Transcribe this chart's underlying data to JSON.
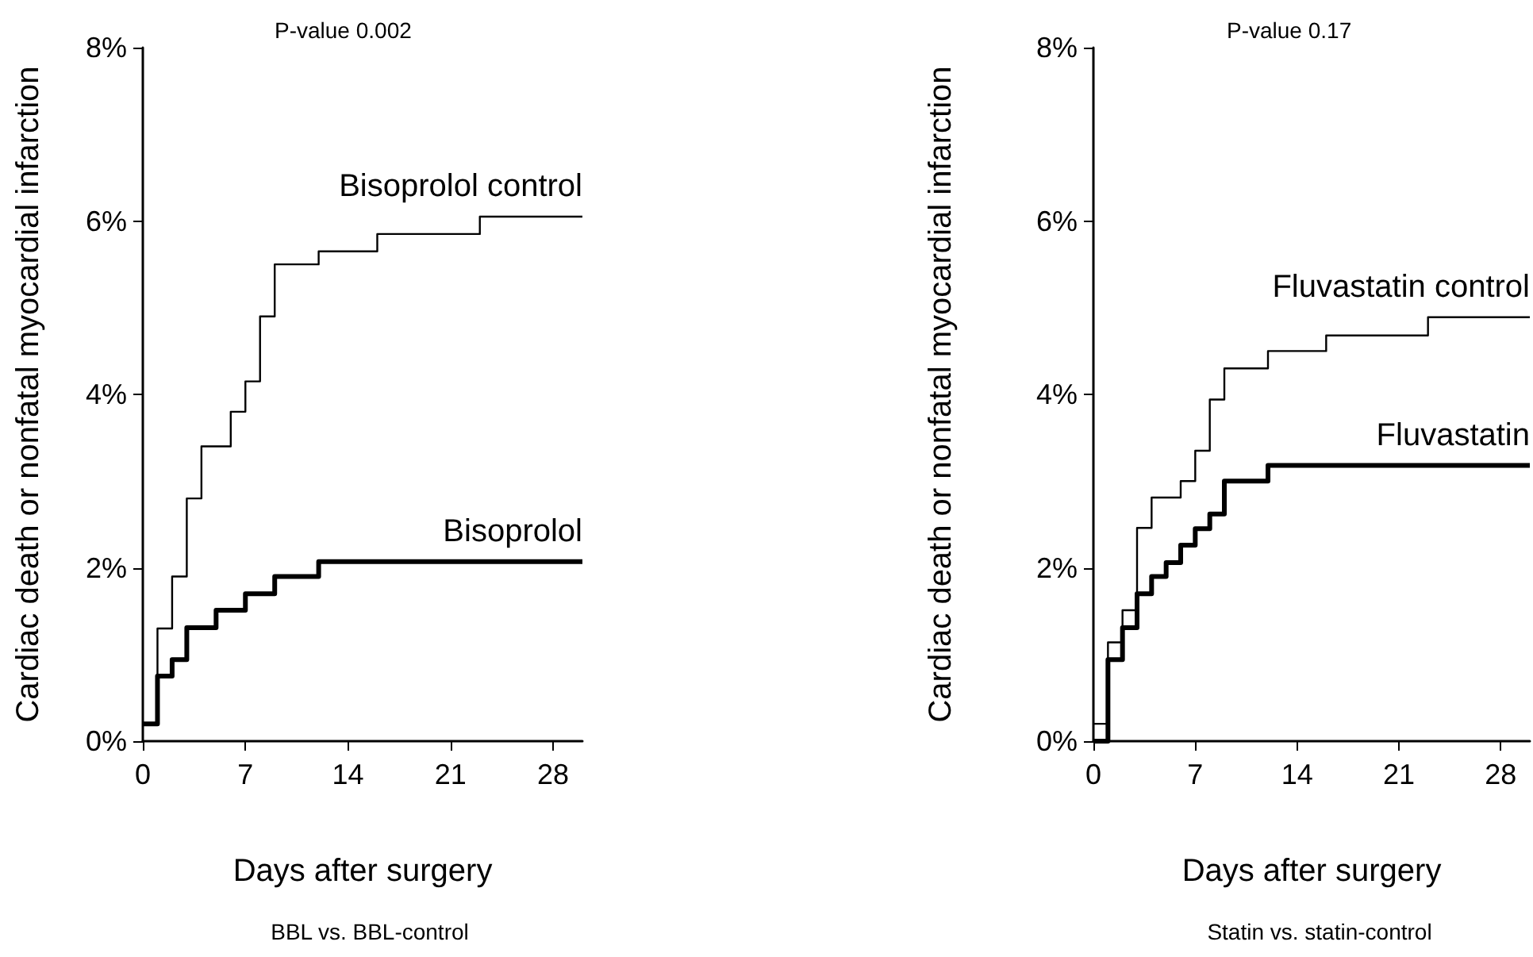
{
  "chart_data": [
    {
      "type": "step",
      "title": "BBL vs. BBL-control",
      "xlabel": "Days after surgery",
      "ylabel": "Cardiac death or nonfatal myocardial infarction",
      "annotations": [
        "P-value 0.002"
      ],
      "xlim": [
        0,
        30
      ],
      "xticks": [
        0,
        7,
        14,
        21,
        28
      ],
      "ylim": [
        0,
        8
      ],
      "yticks": [
        {
          "value": 0,
          "label": "0%"
        },
        {
          "value": 2,
          "label": "2%"
        },
        {
          "value": 4,
          "label": "4%"
        },
        {
          "value": 6,
          "label": "6%"
        },
        {
          "value": 8,
          "label": "8%"
        }
      ],
      "grid": false,
      "legend": false,
      "marker": "none",
      "series": [
        {
          "name": "Bisoprolol control",
          "color": "#000000",
          "x": [
            0,
            1,
            2,
            3,
            4,
            6,
            7,
            8,
            9,
            12,
            16,
            23,
            30
          ],
          "values": [
            0.2,
            1.3,
            1.9,
            2.8,
            3.4,
            3.8,
            4.15,
            4.9,
            5.5,
            5.65,
            5.85,
            6.05,
            6.05
          ]
        },
        {
          "name": "Bisoprolol",
          "color": "#000000",
          "x": [
            0,
            1,
            2,
            3,
            5,
            7,
            9,
            12,
            30
          ],
          "values": [
            0.2,
            0.75,
            0.94,
            1.31,
            1.51,
            1.7,
            1.9,
            2.07,
            2.07
          ]
        }
      ]
    },
    {
      "type": "step",
      "title": "Statin vs. statin-control",
      "xlabel": "Days after surgery",
      "ylabel": "Cardiac death or nonfatal myocardial infarction",
      "annotations": [
        "P-value 0.17"
      ],
      "xlim": [
        0,
        30
      ],
      "xticks": [
        0,
        7,
        14,
        21,
        28
      ],
      "ylim": [
        0,
        8
      ],
      "yticks": [
        {
          "value": 0,
          "label": "0%"
        },
        {
          "value": 2,
          "label": "2%"
        },
        {
          "value": 4,
          "label": "4%"
        },
        {
          "value": 6,
          "label": "6%"
        },
        {
          "value": 8,
          "label": "8%"
        }
      ],
      "grid": false,
      "legend": false,
      "marker": "none",
      "series": [
        {
          "name": "Fluvastatin control",
          "color": "#000000",
          "x": [
            0,
            1,
            2,
            3,
            4,
            6,
            7,
            8,
            9,
            12,
            16,
            23,
            30
          ],
          "values": [
            0.2,
            1.14,
            1.51,
            2.46,
            2.81,
            3.0,
            3.35,
            3.94,
            4.3,
            4.5,
            4.68,
            4.89,
            4.89
          ]
        },
        {
          "name": "Fluvastatin",
          "color": "#000000",
          "x": [
            0,
            1,
            2,
            3,
            4,
            5,
            6,
            7,
            8,
            9,
            12,
            30
          ],
          "values": [
            0,
            0.94,
            1.31,
            1.7,
            1.9,
            2.06,
            2.26,
            2.45,
            2.62,
            3.0,
            3.18,
            3.18
          ]
        }
      ]
    }
  ]
}
